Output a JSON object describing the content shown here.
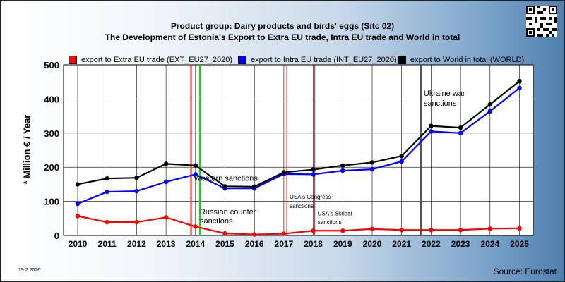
{
  "chart_data": {
    "type": "line",
    "title": "Product group: Dairy products and birds' eggs (Sitc 02)",
    "subtitle": "The Development of Estonia's Export to Extra EU trade, Intra EU trade and World in total",
    "xlabel": "",
    "ylabel": "* Million € / Year",
    "ylim": [
      0,
      500
    ],
    "yticks": [
      "0",
      "100",
      "200",
      "300",
      "400",
      "500"
    ],
    "categories": [
      "2010",
      "2011",
      "2012",
      "2013",
      "2014",
      "2015",
      "2016",
      "2017",
      "2018",
      "2019",
      "2020",
      "2021",
      "2022",
      "2023",
      "2024",
      "2025"
    ],
    "grid": true,
    "legend_position": "top",
    "series": [
      {
        "name": "export to Extra EU trade (EXT_EU27_2020)",
        "color": "#ff0000",
        "x": [
          2010,
          2011,
          2012,
          2013,
          2014,
          2015,
          2016,
          2017,
          2018,
          2019,
          2020,
          2021,
          2022,
          2023,
          2024,
          2025
        ],
        "values": [
          57,
          39,
          39,
          53,
          26,
          6,
          3,
          5,
          14,
          14,
          19,
          16,
          16,
          16,
          20,
          21
        ]
      },
      {
        "name": "export to Intra EU trade (INT_EU27_2020)",
        "color": "#0000ff",
        "x": [
          2010,
          2011,
          2012,
          2013,
          2014,
          2015,
          2016,
          2017,
          2018,
          2019,
          2020,
          2021,
          2022,
          2023,
          2024,
          2025
        ],
        "values": [
          93,
          128,
          130,
          157,
          179,
          138,
          138,
          180,
          179,
          190,
          194,
          217,
          305,
          300,
          364,
          432
        ]
      },
      {
        "name": "export to World in total (WORLD)",
        "color": "#000000",
        "x": [
          2010,
          2011,
          2012,
          2013,
          2014,
          2015,
          2016,
          2017,
          2018,
          2019,
          2020,
          2021,
          2022,
          2023,
          2024,
          2025
        ],
        "values": [
          150,
          167,
          169,
          210,
          205,
          144,
          143,
          185,
          193,
          205,
          214,
          233,
          321,
          316,
          384,
          452
        ]
      }
    ],
    "events": [
      {
        "x": 2013.85,
        "color": "#ff0000",
        "width": 2,
        "label": ""
      },
      {
        "x": 2014.15,
        "color": "#00dd00",
        "width": 2,
        "label": ""
      },
      {
        "x": 2017.1,
        "color": "#ff0000",
        "width": 1,
        "label": ""
      },
      {
        "x": 2018.05,
        "color": "#ff0000",
        "width": 1,
        "label": ""
      },
      {
        "x": 2021.65,
        "color": "#555555",
        "width": 3,
        "label": ""
      }
    ],
    "annotations": [
      {
        "text": "Western sanctions",
        "x": 2013.9,
        "y": 160,
        "size": 11
      },
      {
        "text": "Russian counter",
        "x": 2014.1,
        "y": 62,
        "size": 11
      },
      {
        "text": "sanctions",
        "x": 2014.1,
        "y": 35,
        "size": 11
      },
      {
        "text": "USA's Congress",
        "x": 2017.15,
        "y": 107,
        "size": 8
      },
      {
        "text": "sanctions",
        "x": 2017.15,
        "y": 81,
        "size": 8
      },
      {
        "text": "USA's Skribal",
        "x": 2018.1,
        "y": 59,
        "size": 8
      },
      {
        "text": "sanctions",
        "x": 2018.1,
        "y": 33,
        "size": 8
      },
      {
        "text": "Ukraine war",
        "x": 2021.7,
        "y": 409,
        "size": 11
      },
      {
        "text": "sanctions",
        "x": 2021.7,
        "y": 380,
        "size": 11
      }
    ]
  },
  "footer": {
    "date": "19.2.2026",
    "source": "Source: Eurostat"
  }
}
